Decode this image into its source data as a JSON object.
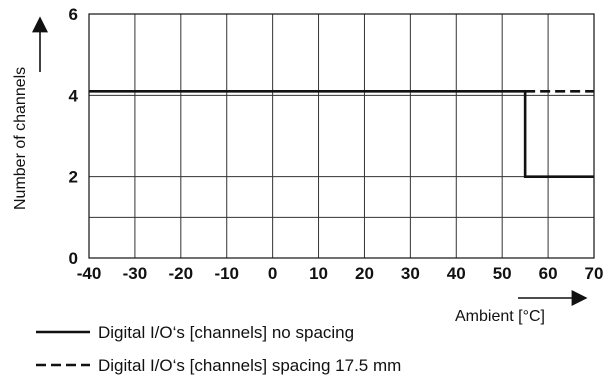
{
  "chart_data": {
    "type": "line",
    "xlabel": "Ambient [°C]",
    "ylabel": "Number of channels",
    "xlim": [
      -40,
      70
    ],
    "ylim": [
      0,
      6
    ],
    "x_ticks": [
      "-40",
      "-30",
      "-20",
      "-10",
      "0",
      "10",
      "20",
      "30",
      "40",
      "50",
      "60",
      "70"
    ],
    "y_ticks": [
      "0",
      "2",
      "4",
      "6"
    ],
    "grid": true,
    "legend_position": "bottom-left",
    "colors": {
      "series": "#111111",
      "grid": "#333333"
    },
    "series": [
      {
        "name": "Digital I/O‘s [channels] no spacing",
        "style": "solid",
        "points": [
          [
            -40,
            4.1
          ],
          [
            55,
            4.1
          ],
          [
            55,
            2
          ],
          [
            70,
            2
          ]
        ]
      },
      {
        "name": "Digital I/O‘s [channels] spacing 17.5 mm",
        "style": "dashed",
        "points": [
          [
            55,
            4.1
          ],
          [
            70,
            4.1
          ]
        ]
      }
    ]
  }
}
